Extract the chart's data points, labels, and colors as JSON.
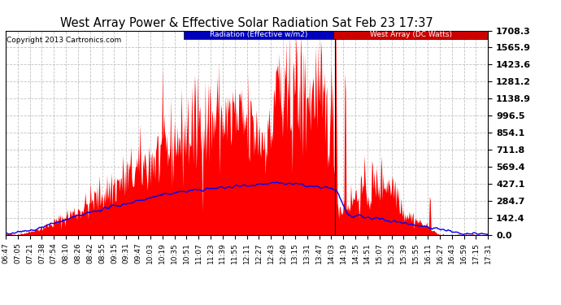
{
  "title": "West Array Power & Effective Solar Radiation Sat Feb 23 17:37",
  "copyright": "Copyright 2013 Cartronics.com",
  "legend_labels": [
    "Radiation (Effective w/m2)",
    "West Array (DC Watts)"
  ],
  "background_color": "#ffffff",
  "plot_bg_color": "#ffffff",
  "grid_color": "#bbbbbb",
  "ylim": [
    0,
    1708.3
  ],
  "yticks": [
    0.0,
    142.4,
    284.7,
    427.1,
    569.4,
    711.8,
    854.1,
    996.5,
    1138.9,
    1281.2,
    1423.6,
    1565.9,
    1708.3
  ],
  "x_tick_labels": [
    "06:47",
    "07:05",
    "07:21",
    "07:38",
    "07:54",
    "08:10",
    "08:26",
    "08:42",
    "08:55",
    "09:15",
    "09:31",
    "09:47",
    "10:03",
    "10:19",
    "10:35",
    "10:51",
    "11:07",
    "11:23",
    "11:39",
    "11:55",
    "12:11",
    "12:27",
    "12:43",
    "12:49",
    "13:15",
    "13:31",
    "13:47",
    "14:03",
    "14:19",
    "14:35",
    "14:51",
    "15:07",
    "15:23",
    "15:39",
    "15:55",
    "16:11",
    "16:27",
    "16:43",
    "16:59",
    "17:15",
    "17:31"
  ]
}
